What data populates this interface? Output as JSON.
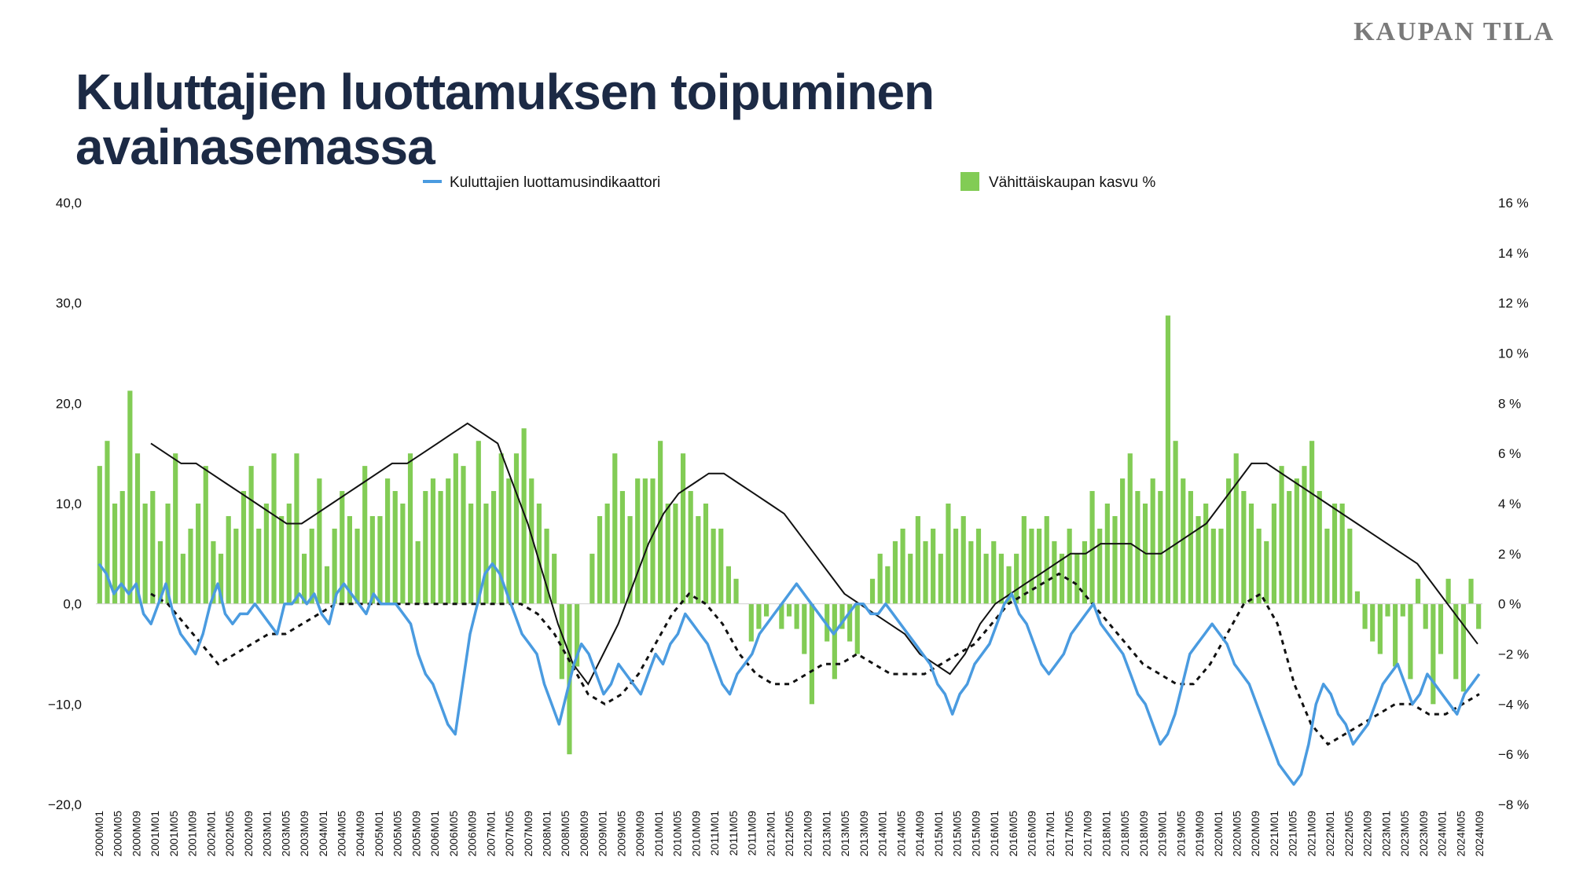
{
  "brand": "KAUPAN TILA",
  "title": {
    "line1": "Kuluttajien luottamuksen toipuminen",
    "line2": "avainasemassa"
  },
  "chart_data": {
    "type": "bar+line",
    "legend": [
      {
        "label": "Kuluttajien luottamusindikaattori",
        "kind": "line",
        "color": "#4a9be0"
      },
      {
        "label": "Vähittäiskaupan kasvu %",
        "kind": "bar",
        "color": "#82cc55"
      }
    ],
    "left_axis": {
      "ylim": [
        -20,
        40
      ],
      "ticks": [
        "40,0",
        "30,0",
        "20,0",
        "10,0",
        "0,0",
        "−10,0",
        "−20,0"
      ]
    },
    "right_axis": {
      "ylim": [
        -8,
        16
      ],
      "ticks": [
        "16 %",
        "14 %",
        "12 %",
        "10 %",
        "8 %",
        "6 %",
        "4 %",
        "2 %",
        "0 %",
        "−2 %",
        "−4 %",
        "−6 %",
        "−8 %"
      ]
    },
    "x_labels": [
      "2000M01",
      "2000M05",
      "2000M09",
      "2001M01",
      "2001M05",
      "2001M09",
      "2002M01",
      "2002M05",
      "2002M09",
      "2003M01",
      "2003M05",
      "2003M09",
      "2004M01",
      "2004M05",
      "2004M09",
      "2005M01",
      "2005M05",
      "2005M09",
      "2006M01",
      "2006M05",
      "2006M09",
      "2007M01",
      "2007M05",
      "2007M09",
      "2008M01",
      "2008M05",
      "2008M09",
      "2009M01",
      "2009M05",
      "2009M09",
      "2010M01",
      "2010M05",
      "2010M09",
      "2011M01",
      "2011M05",
      "2011M09",
      "2012M01",
      "2012M05",
      "2012M09",
      "2013M01",
      "2013M05",
      "2013M09",
      "2014M01",
      "2014M05",
      "2014M09",
      "2015M01",
      "2015M05",
      "2015M09",
      "2016M01",
      "2016M05",
      "2016M09",
      "2017M01",
      "2017M05",
      "2017M09",
      "2018M01",
      "2018M05",
      "2018M09",
      "2019M01",
      "2019M05",
      "2019M09",
      "2020M01",
      "2020M05",
      "2020M09",
      "2021M01",
      "2021M05",
      "2021M09",
      "2022M01",
      "2022M05",
      "2022M09",
      "2023M01",
      "2023M05",
      "2023M09",
      "2024M01",
      "2024M05",
      "2024M09"
    ],
    "retail_growth_pct": [
      5.5,
      6.5,
      4.0,
      4.5,
      8.5,
      6.0,
      4.0,
      4.5,
      2.5,
      4.0,
      6.0,
      2.0,
      3.0,
      4.0,
      5.5,
      2.5,
      2.0,
      3.5,
      3.0,
      4.5,
      5.5,
      3.0,
      4.0,
      6.0,
      3.5,
      4.0,
      6.0,
      2.0,
      3.0,
      5.0,
      1.5,
      3.0,
      4.5,
      3.5,
      3.0,
      5.5,
      3.5,
      3.5,
      5.0,
      4.5,
      4.0,
      6.0,
      2.5,
      4.5,
      5.0,
      4.5,
      5.0,
      6.0,
      5.5,
      4.0,
      6.5,
      4.0,
      4.5,
      6.0,
      5.0,
      6.0,
      7.0,
      5.0,
      4.0,
      3.0,
      2.0,
      -3.0,
      -6.0,
      -2.5,
      0.0,
      2.0,
      3.5,
      4.0,
      6.0,
      4.5,
      3.5,
      5.0,
      5.0,
      5.0,
      6.5,
      4.0,
      4.0,
      6.0,
      4.5,
      3.5,
      4.0,
      3.0,
      3.0,
      1.5,
      1.0,
      0.0,
      -1.5,
      -1.0,
      -0.5,
      0.0,
      -1.0,
      -0.5,
      -1.0,
      -2.0,
      -4.0,
      0.0,
      -1.5,
      -3.0,
      -1.0,
      -1.5,
      -2.0,
      0.0,
      1.0,
      2.0,
      1.5,
      2.5,
      3.0,
      2.0,
      3.5,
      2.5,
      3.0,
      2.0,
      4.0,
      3.0,
      3.5,
      2.5,
      3.0,
      2.0,
      2.5,
      2.0,
      1.5,
      2.0,
      3.5,
      3.0,
      3.0,
      3.5,
      2.5,
      2.0,
      3.0,
      2.0,
      2.5,
      4.5,
      3.0,
      4.0,
      3.5,
      5.0,
      6.0,
      4.5,
      4.0,
      5.0,
      4.5,
      11.5,
      6.5,
      5.0,
      4.5,
      3.5,
      4.0,
      3.0,
      3.0,
      5.0,
      6.0,
      4.5,
      4.0,
      3.0,
      2.5,
      4.0,
      5.5,
      4.5,
      5.0,
      5.5,
      6.5,
      4.5,
      3.0,
      4.0,
      4.0,
      3.0,
      0.5,
      -1.0,
      -1.5,
      -2.0,
      -0.5,
      -2.5,
      -0.5,
      -3.0,
      1.0,
      -1.0,
      -4.0,
      -2.0,
      1.0,
      -3.0,
      -3.5,
      1.0,
      -1.0
    ],
    "confidence_indicator": [
      4,
      3,
      1,
      2,
      1,
      2,
      -1,
      -2,
      0,
      2,
      -1,
      -3,
      -4,
      -5,
      -3,
      0,
      2,
      -1,
      -2,
      -1,
      -1,
      0,
      -1,
      -2,
      -3,
      0,
      0,
      1,
      0,
      1,
      -1,
      -2,
      1,
      2,
      1,
      0,
      -1,
      1,
      0,
      0,
      0,
      -1,
      -2,
      -5,
      -7,
      -8,
      -10,
      -12,
      -13,
      -8,
      -3,
      0,
      3,
      4,
      3,
      1,
      -1,
      -3,
      -4,
      -5,
      -8,
      -10,
      -12,
      -9,
      -6,
      -4,
      -5,
      -7,
      -9,
      -8,
      -6,
      -7,
      -8,
      -9,
      -7,
      -5,
      -6,
      -4,
      -3,
      -1,
      -2,
      -3,
      -4,
      -6,
      -8,
      -9,
      -7,
      -6,
      -5,
      -3,
      -2,
      -1,
      0,
      1,
      2,
      1,
      0,
      -1,
      -2,
      -3,
      -2,
      -1,
      0,
      0,
      -1,
      -1,
      0,
      -1,
      -2,
      -3,
      -4,
      -5,
      -6,
      -8,
      -9,
      -11,
      -9,
      -8,
      -6,
      -5,
      -4,
      -2,
      0,
      1,
      -1,
      -2,
      -4,
      -6,
      -7,
      -6,
      -5,
      -3,
      -2,
      -1,
      0,
      -2,
      -3,
      -4,
      -5,
      -7,
      -9,
      -10,
      -12,
      -14,
      -13,
      -11,
      -8,
      -5,
      -4,
      -3,
      -2,
      -3,
      -4,
      -6,
      -7,
      -8,
      -10,
      -12,
      -14,
      -16,
      -17,
      -18,
      -17,
      -14,
      -10,
      -8,
      -9,
      -11,
      -12,
      -14,
      -13,
      -12,
      -10,
      -8,
      -7,
      -6,
      -8,
      -10,
      -9,
      -7,
      -8,
      -9,
      -10,
      -11,
      -9,
      -8,
      -7
    ],
    "trend_black_left_units": [
      16,
      15,
      14,
      14,
      13,
      12,
      11,
      10,
      9,
      8,
      8,
      9,
      10,
      11,
      12,
      13,
      14,
      14,
      15,
      16,
      17,
      18,
      17,
      16,
      12,
      8,
      3,
      -2,
      -6,
      -8,
      -5,
      -2,
      2,
      6,
      9,
      11,
      12,
      13,
      13,
      12,
      11,
      10,
      9,
      7,
      5,
      3,
      1,
      0,
      -1,
      -2,
      -3,
      -5,
      -6,
      -7,
      -5,
      -2,
      0,
      1,
      2,
      3,
      4,
      5,
      5,
      6,
      6,
      6,
      5,
      5,
      6,
      7,
      8,
      10,
      12,
      14,
      14,
      13,
      12,
      11,
      10,
      9,
      8,
      7,
      6,
      5,
      4,
      2,
      0,
      -2,
      -4
    ],
    "trend_dashed_left_units": [
      1,
      0,
      -2,
      -4,
      -6,
      -5,
      -4,
      -3,
      -3,
      -2,
      -1,
      0,
      0,
      0,
      0,
      0,
      0,
      0,
      0,
      0,
      0,
      0,
      0,
      -1,
      -3,
      -6,
      -9,
      -10,
      -9,
      -7,
      -4,
      -1,
      1,
      0,
      -2,
      -5,
      -7,
      -8,
      -8,
      -7,
      -6,
      -6,
      -5,
      -6,
      -7,
      -7,
      -7,
      -6,
      -5,
      -4,
      -2,
      0,
      1,
      2,
      3,
      2,
      0,
      -2,
      -4,
      -6,
      -7,
      -8,
      -8,
      -6,
      -3,
      0,
      1,
      -2,
      -8,
      -12,
      -14,
      -13,
      -12,
      -11,
      -10,
      -10,
      -11,
      -11,
      -10,
      -9
    ]
  }
}
